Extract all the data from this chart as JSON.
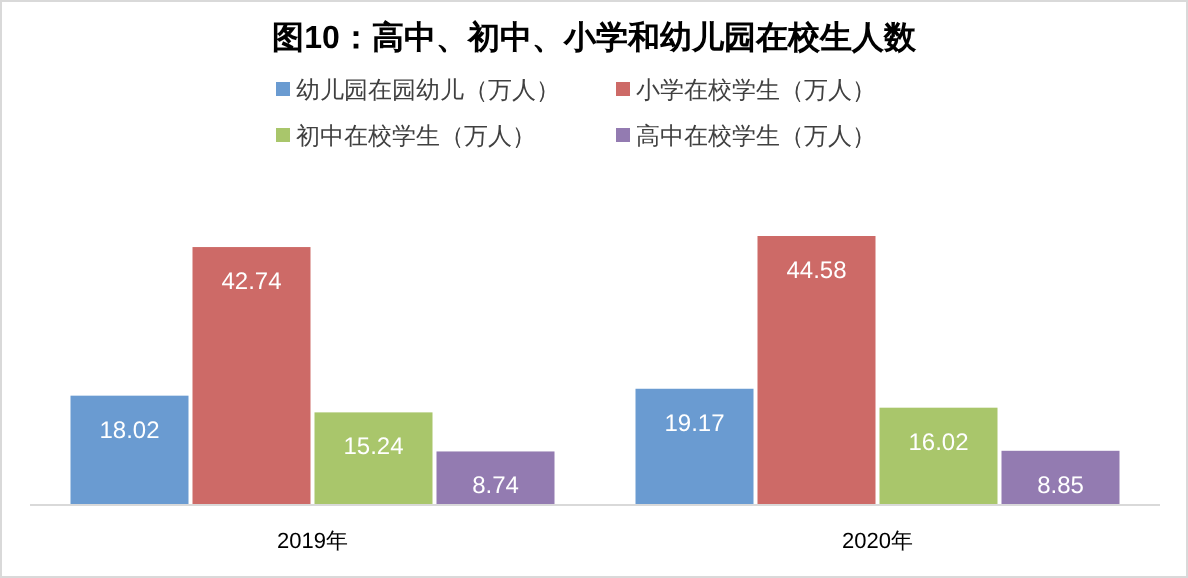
{
  "chart_data": {
    "type": "bar",
    "title": "图10：高中、初中、小学和幼儿园在校生人数",
    "categories": [
      "2019年",
      "2020年"
    ],
    "series": [
      {
        "name": "幼儿园在园幼儿（万人）",
        "color": "#6a9bd1",
        "values": [
          18.02,
          19.17
        ]
      },
      {
        "name": "小学在校学生（万人）",
        "color": "#cd6a67",
        "values": [
          42.74,
          44.58
        ]
      },
      {
        "name": "初中在校学生（万人）",
        "color": "#a9c66b",
        "values": [
          15.24,
          16.02
        ]
      },
      {
        "name": "高中在校学生（万人）",
        "color": "#937bb1",
        "values": [
          8.74,
          8.85
        ]
      }
    ],
    "data_labels": true,
    "legend": "top"
  }
}
